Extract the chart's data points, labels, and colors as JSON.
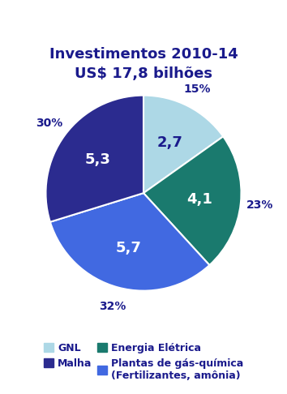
{
  "title": "Investimentos 2010-14\nUS$ 17,8 bilhões",
  "title_color": "#1A1A8C",
  "slices": [
    {
      "label": "GNL",
      "value": 2.7,
      "pct": "15%",
      "color": "#ADD8E6",
      "inside_color": "#1A1A8C"
    },
    {
      "label": "Energia Elétrica",
      "value": 4.1,
      "pct": "23%",
      "color": "#1A7A6E",
      "inside_color": "white"
    },
    {
      "label": "Plantas de gás-química\n(Fertilizantes, amônia)",
      "value": 5.7,
      "pct": "32%",
      "color": "#4169E1",
      "inside_color": "white"
    },
    {
      "label": "Malha",
      "value": 5.3,
      "pct": "30%",
      "color": "#2B2B8F",
      "inside_color": "white"
    }
  ],
  "startangle": 90,
  "background_color": "#FFFFFF",
  "pct_color": "#1A1A8C",
  "edge_color": "white",
  "edge_linewidth": 1.5,
  "title_fontsize": 13,
  "inside_fontsize": 13,
  "pct_fontsize": 10,
  "legend_fontsize": 9,
  "legend_order": [
    0,
    3,
    1,
    2
  ]
}
